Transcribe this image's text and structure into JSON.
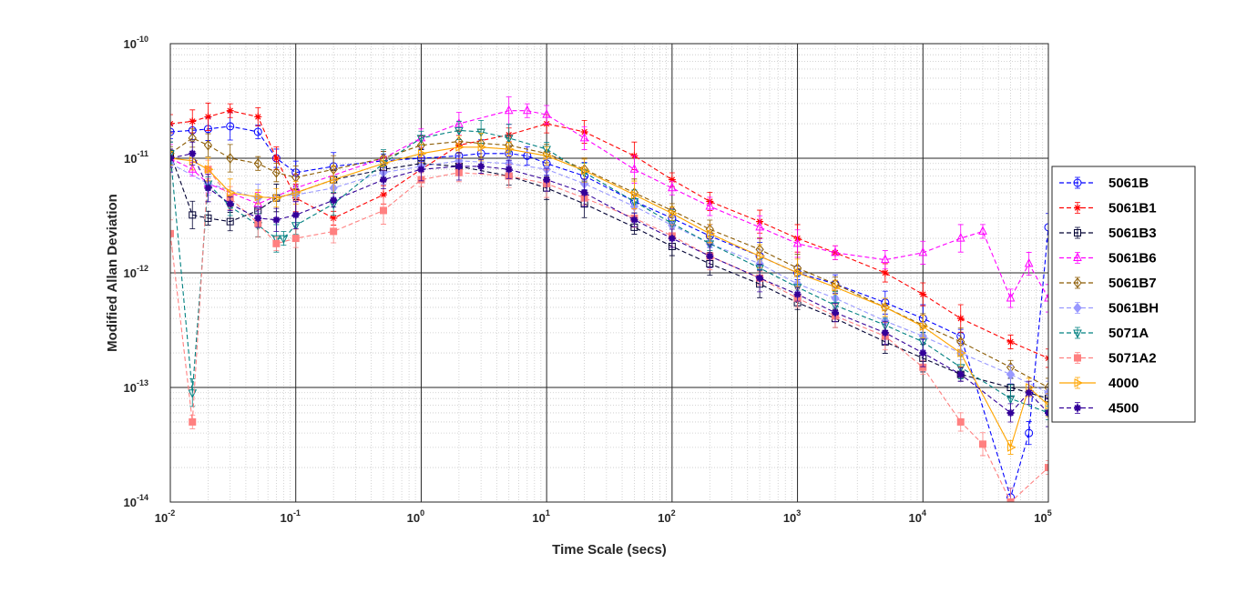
{
  "chart_data": {
    "type": "line",
    "title": "",
    "xlabel": "Time Scale (secs)",
    "ylabel": "Modified Allan Deviation",
    "x_scale": "log",
    "y_scale": "log",
    "xlim": [
      0.01,
      100000
    ],
    "ylim": [
      1e-14,
      1e-10
    ],
    "x_ticks": [
      {
        "base": "10",
        "exp": "-2"
      },
      {
        "base": "10",
        "exp": "-1"
      },
      {
        "base": "10",
        "exp": "0"
      },
      {
        "base": "10",
        "exp": "1"
      },
      {
        "base": "10",
        "exp": "2"
      },
      {
        "base": "10",
        "exp": "3"
      },
      {
        "base": "10",
        "exp": "4"
      },
      {
        "base": "10",
        "exp": "5"
      }
    ],
    "y_ticks": [
      {
        "base": "10",
        "exp": "-14"
      },
      {
        "base": "10",
        "exp": "-13"
      },
      {
        "base": "10",
        "exp": "-12"
      },
      {
        "base": "10",
        "exp": "-11"
      },
      {
        "base": "10",
        "exp": "-10"
      }
    ],
    "grid": true,
    "minor_grid": true,
    "legend_position": "outside-right",
    "series": [
      {
        "name": "5061B",
        "color": "#0000ff",
        "marker": "circle",
        "line": "dashed",
        "points": [
          [
            0.01,
            1.7e-11
          ],
          [
            0.015,
            1.75e-11
          ],
          [
            0.02,
            1.8e-11
          ],
          [
            0.03,
            1.9e-11
          ],
          [
            0.05,
            1.7e-11
          ],
          [
            0.07,
            1e-11
          ],
          [
            0.1,
            7.5e-12
          ],
          [
            0.2,
            8.5e-12
          ],
          [
            0.5,
            9.5e-12
          ],
          [
            1,
            1e-11
          ],
          [
            2,
            1.05e-11
          ],
          [
            3,
            1.1e-11
          ],
          [
            5,
            1.1e-11
          ],
          [
            7,
            1.05e-11
          ],
          [
            10,
            9e-12
          ],
          [
            20,
            7e-12
          ],
          [
            50,
            4.2e-12
          ],
          [
            100,
            3e-12
          ],
          [
            200,
            2.1e-12
          ],
          [
            500,
            1.4e-12
          ],
          [
            1000,
            1e-12
          ],
          [
            2000,
            8e-13
          ],
          [
            5000,
            5.5e-13
          ],
          [
            10000,
            4e-13
          ],
          [
            20000,
            2.8e-13
          ],
          [
            50000,
            1.1e-14
          ],
          [
            70000,
            4e-14
          ],
          [
            100000,
            2.5e-12
          ]
        ]
      },
      {
        "name": "5061B1",
        "color": "#ff0000",
        "marker": "star",
        "line": "dashed",
        "points": [
          [
            0.01,
            2e-11
          ],
          [
            0.015,
            2.1e-11
          ],
          [
            0.02,
            2.3e-11
          ],
          [
            0.03,
            2.6e-11
          ],
          [
            0.05,
            2.3e-11
          ],
          [
            0.07,
            1e-11
          ],
          [
            0.1,
            4.5e-12
          ],
          [
            0.2,
            3e-12
          ],
          [
            0.5,
            4.8e-12
          ],
          [
            1,
            8e-12
          ],
          [
            2,
            1.3e-11
          ],
          [
            5,
            1.6e-11
          ],
          [
            10,
            2e-11
          ],
          [
            20,
            1.7e-11
          ],
          [
            50,
            1.05e-11
          ],
          [
            100,
            6.5e-12
          ],
          [
            200,
            4.2e-12
          ],
          [
            500,
            2.8e-12
          ],
          [
            1000,
            2e-12
          ],
          [
            2000,
            1.5e-12
          ],
          [
            5000,
            1e-12
          ],
          [
            10000,
            6.5e-13
          ],
          [
            20000,
            4e-13
          ],
          [
            50000,
            2.5e-13
          ],
          [
            100000,
            1.8e-13
          ]
        ]
      },
      {
        "name": "5061B3",
        "color": "#000033",
        "marker": "square",
        "line": "dashed",
        "points": [
          [
            0.01,
            1.1e-11
          ],
          [
            0.015,
            3.2e-12
          ],
          [
            0.02,
            3e-12
          ],
          [
            0.03,
            2.8e-12
          ],
          [
            0.05,
            3.5e-12
          ],
          [
            0.07,
            4.5e-12
          ],
          [
            0.1,
            5e-12
          ],
          [
            0.2,
            6.5e-12
          ],
          [
            0.5,
            8e-12
          ],
          [
            1,
            9e-12
          ],
          [
            2,
            8.5e-12
          ],
          [
            5,
            7e-12
          ],
          [
            10,
            5.5e-12
          ],
          [
            20,
            4e-12
          ],
          [
            50,
            2.5e-12
          ],
          [
            100,
            1.7e-12
          ],
          [
            200,
            1.2e-12
          ],
          [
            500,
            8e-13
          ],
          [
            1000,
            5.5e-13
          ],
          [
            2000,
            4e-13
          ],
          [
            5000,
            2.5e-13
          ],
          [
            10000,
            1.8e-13
          ],
          [
            20000,
            1.3e-13
          ],
          [
            50000,
            1e-13
          ],
          [
            100000,
            8e-14
          ]
        ]
      },
      {
        "name": "5061B6",
        "color": "#ff00ff",
        "marker": "triangle-up",
        "line": "dashed",
        "points": [
          [
            0.01,
            1e-11
          ],
          [
            0.015,
            8e-12
          ],
          [
            0.02,
            6e-12
          ],
          [
            0.05,
            4e-12
          ],
          [
            0.1,
            5.5e-12
          ],
          [
            0.5,
            1e-11
          ],
          [
            1,
            1.5e-11
          ],
          [
            2,
            2e-11
          ],
          [
            5,
            2.6e-11
          ],
          [
            7,
            2.6e-11
          ],
          [
            10,
            2.4e-11
          ],
          [
            20,
            1.5e-11
          ],
          [
            50,
            8e-12
          ],
          [
            100,
            5.5e-12
          ],
          [
            200,
            3.8e-12
          ],
          [
            500,
            2.5e-12
          ],
          [
            1000,
            1.8e-12
          ],
          [
            2000,
            1.5e-12
          ],
          [
            5000,
            1.3e-12
          ],
          [
            10000,
            1.5e-12
          ],
          [
            20000,
            2e-12
          ],
          [
            30000,
            2.3e-12
          ],
          [
            50000,
            6e-13
          ],
          [
            70000,
            1.2e-12
          ],
          [
            100000,
            6e-13
          ]
        ]
      },
      {
        "name": "5061B7",
        "color": "#8b5a00",
        "marker": "diamond",
        "line": "dashed",
        "points": [
          [
            0.01,
            1.1e-11
          ],
          [
            0.015,
            1.5e-11
          ],
          [
            0.02,
            1.3e-11
          ],
          [
            0.03,
            1e-11
          ],
          [
            0.05,
            9e-12
          ],
          [
            0.07,
            7.5e-12
          ],
          [
            0.1,
            6.8e-12
          ],
          [
            0.2,
            8e-12
          ],
          [
            0.5,
            1e-11
          ],
          [
            1,
            1.3e-11
          ],
          [
            2,
            1.4e-11
          ],
          [
            3,
            1.35e-11
          ],
          [
            5,
            1.3e-11
          ],
          [
            10,
            1.1e-11
          ],
          [
            20,
            8e-12
          ],
          [
            50,
            5e-12
          ],
          [
            100,
            3.5e-12
          ],
          [
            200,
            2.4e-12
          ],
          [
            500,
            1.6e-12
          ],
          [
            1000,
            1.1e-12
          ],
          [
            2000,
            8e-13
          ],
          [
            5000,
            5e-13
          ],
          [
            10000,
            3.5e-13
          ],
          [
            20000,
            2.5e-13
          ],
          [
            50000,
            1.5e-13
          ],
          [
            100000,
            1e-13
          ]
        ]
      },
      {
        "name": "5061BH",
        "color": "#9999ff",
        "marker": "diamond-filled",
        "line": "dashed",
        "points": [
          [
            0.01,
            9e-12
          ],
          [
            0.02,
            6e-12
          ],
          [
            0.05,
            4.5e-12
          ],
          [
            0.1,
            4.8e-12
          ],
          [
            0.2,
            5.5e-12
          ],
          [
            0.5,
            7.5e-12
          ],
          [
            1,
            8.5e-12
          ],
          [
            2,
            9.5e-12
          ],
          [
            5,
            9e-12
          ],
          [
            10,
            8e-12
          ],
          [
            20,
            6e-12
          ],
          [
            50,
            3.8e-12
          ],
          [
            100,
            2.6e-12
          ],
          [
            200,
            1.8e-12
          ],
          [
            500,
            1.2e-12
          ],
          [
            1000,
            8e-13
          ],
          [
            2000,
            6e-13
          ],
          [
            5000,
            3.8e-13
          ],
          [
            10000,
            2.8e-13
          ],
          [
            20000,
            2e-13
          ],
          [
            50000,
            1.3e-13
          ],
          [
            100000,
            9e-14
          ]
        ]
      },
      {
        "name": "5071A",
        "color": "#008080",
        "marker": "triangle-down",
        "line": "dashed",
        "points": [
          [
            0.01,
            1.1e-11
          ],
          [
            0.015,
            9e-14
          ],
          [
            0.02,
            6e-12
          ],
          [
            0.03,
            3.8e-12
          ],
          [
            0.05,
            2.6e-12
          ],
          [
            0.07,
            2e-12
          ],
          [
            0.08,
            2e-12
          ],
          [
            0.1,
            2.6e-12
          ],
          [
            0.2,
            4e-12
          ],
          [
            0.5,
            9e-12
          ],
          [
            1,
            1.5e-11
          ],
          [
            2,
            1.75e-11
          ],
          [
            3,
            1.7e-11
          ],
          [
            5,
            1.5e-11
          ],
          [
            10,
            1.2e-11
          ],
          [
            20,
            7.5e-12
          ],
          [
            50,
            4.2e-12
          ],
          [
            100,
            2.7e-12
          ],
          [
            200,
            1.8e-12
          ],
          [
            500,
            1.1e-12
          ],
          [
            1000,
            7.5e-13
          ],
          [
            2000,
            5.2e-13
          ],
          [
            5000,
            3.5e-13
          ],
          [
            10000,
            2.5e-13
          ],
          [
            20000,
            1.5e-13
          ],
          [
            50000,
            8e-14
          ],
          [
            100000,
            6e-14
          ]
        ]
      },
      {
        "name": "5071A2",
        "color": "#ff8080",
        "marker": "square-filled",
        "line": "dashed",
        "points": [
          [
            0.01,
            2.2e-12
          ],
          [
            0.015,
            5e-14
          ],
          [
            0.02,
            8e-12
          ],
          [
            0.03,
            4.5e-12
          ],
          [
            0.05,
            2.7e-12
          ],
          [
            0.07,
            1.8e-12
          ],
          [
            0.1,
            2e-12
          ],
          [
            0.2,
            2.3e-12
          ],
          [
            0.5,
            3.5e-12
          ],
          [
            1,
            6.5e-12
          ],
          [
            2,
            7.5e-12
          ],
          [
            5,
            7e-12
          ],
          [
            10,
            6e-12
          ],
          [
            20,
            4.5e-12
          ],
          [
            50,
            3e-12
          ],
          [
            100,
            2.1e-12
          ],
          [
            200,
            1.4e-12
          ],
          [
            500,
            9e-13
          ],
          [
            1000,
            6e-13
          ],
          [
            2000,
            4.2e-13
          ],
          [
            5000,
            2.8e-13
          ],
          [
            10000,
            1.5e-13
          ],
          [
            20000,
            5e-14
          ],
          [
            30000,
            3.2e-14
          ],
          [
            50000,
            1e-14
          ],
          [
            100000,
            2e-14
          ]
        ]
      },
      {
        "name": "4000",
        "color": "#ffa500",
        "marker": "triangle-right",
        "line": "solid",
        "points": [
          [
            0.01,
            1e-11
          ],
          [
            0.015,
            9.5e-12
          ],
          [
            0.02,
            8e-12
          ],
          [
            0.03,
            5e-12
          ],
          [
            0.05,
            4.6e-12
          ],
          [
            0.07,
            4.5e-12
          ],
          [
            0.1,
            5e-12
          ],
          [
            0.2,
            6.5e-12
          ],
          [
            0.5,
            9e-12
          ],
          [
            1,
            1.1e-11
          ],
          [
            2,
            1.25e-11
          ],
          [
            3,
            1.25e-11
          ],
          [
            5,
            1.2e-11
          ],
          [
            10,
            1.05e-11
          ],
          [
            20,
            7.8e-12
          ],
          [
            50,
            4.8e-12
          ],
          [
            100,
            3.3e-12
          ],
          [
            200,
            2.2e-12
          ],
          [
            500,
            1.4e-12
          ],
          [
            1000,
            1e-12
          ],
          [
            2000,
            7.5e-13
          ],
          [
            5000,
            5e-13
          ],
          [
            10000,
            3.4e-13
          ],
          [
            20000,
            2e-13
          ],
          [
            50000,
            3e-14
          ],
          [
            70000,
            1e-13
          ],
          [
            100000,
            7e-14
          ]
        ]
      },
      {
        "name": "4500",
        "color": "#330099",
        "marker": "star-filled",
        "line": "dashed",
        "points": [
          [
            0.01,
            1e-11
          ],
          [
            0.015,
            1.1e-11
          ],
          [
            0.02,
            5.5e-12
          ],
          [
            0.03,
            4e-12
          ],
          [
            0.05,
            3e-12
          ],
          [
            0.07,
            2.9e-12
          ],
          [
            0.1,
            3.2e-12
          ],
          [
            0.2,
            4.3e-12
          ],
          [
            0.5,
            6.5e-12
          ],
          [
            1,
            8e-12
          ],
          [
            2,
            8.5e-12
          ],
          [
            3,
            8.5e-12
          ],
          [
            5,
            8e-12
          ],
          [
            10,
            6.5e-12
          ],
          [
            20,
            5e-12
          ],
          [
            50,
            2.9e-12
          ],
          [
            100,
            2e-12
          ],
          [
            200,
            1.4e-12
          ],
          [
            500,
            9e-13
          ],
          [
            1000,
            6.5e-13
          ],
          [
            2000,
            4.5e-13
          ],
          [
            5000,
            3e-13
          ],
          [
            10000,
            2e-13
          ],
          [
            20000,
            1.3e-13
          ],
          [
            50000,
            6e-14
          ],
          [
            70000,
            9e-14
          ],
          [
            100000,
            6e-14
          ]
        ]
      }
    ]
  }
}
